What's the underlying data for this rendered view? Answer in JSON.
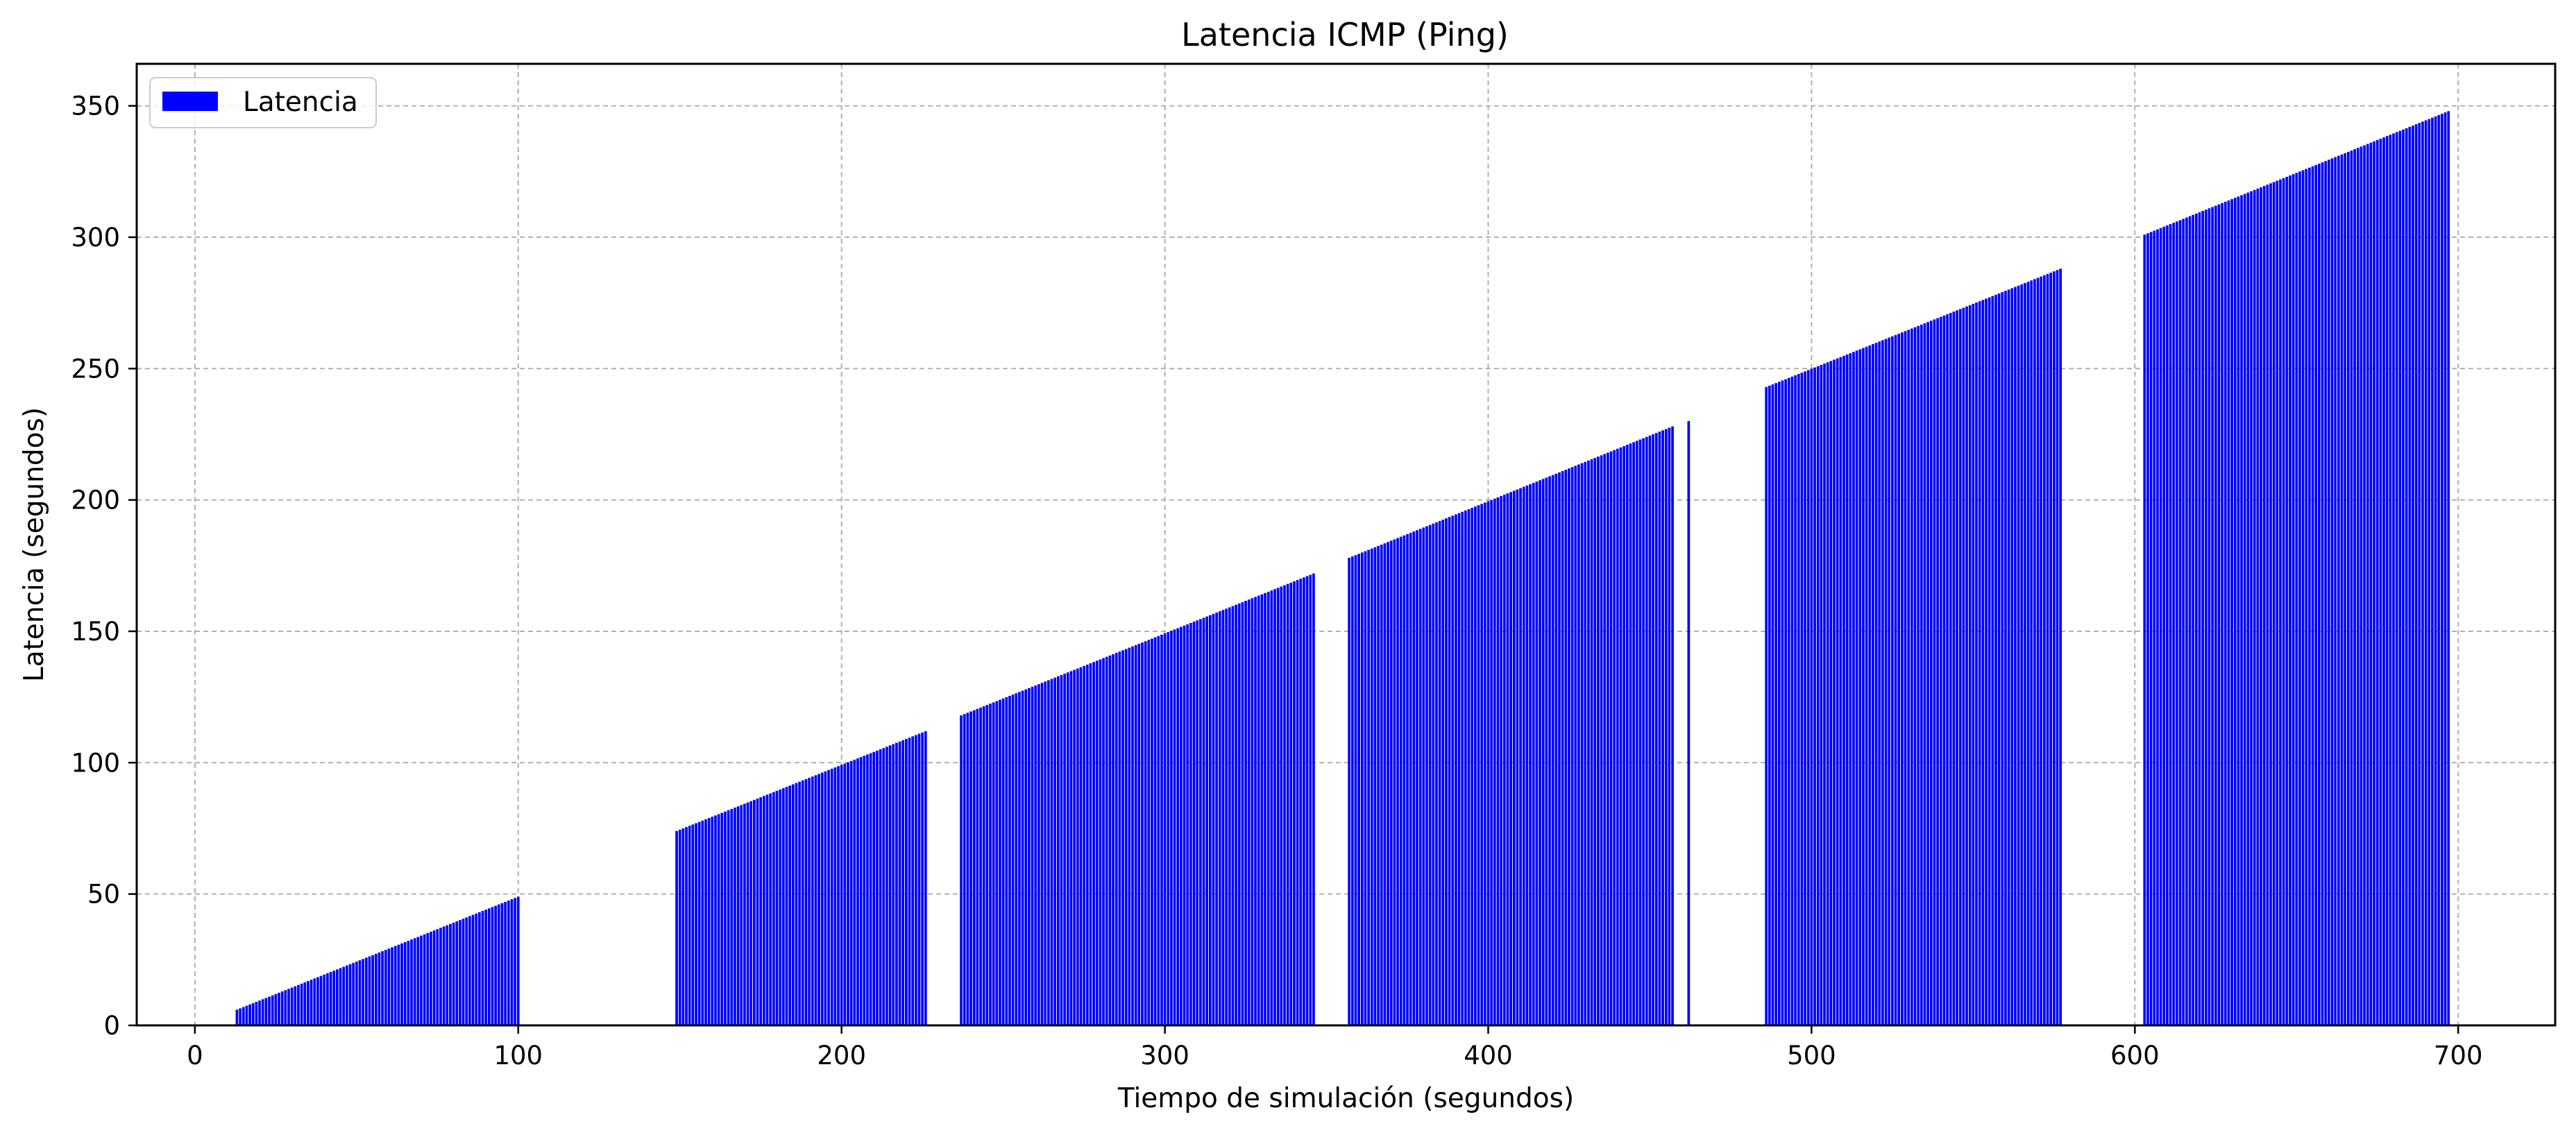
{
  "chart_data": {
    "type": "bar",
    "title": "Latencia ICMP (Ping)",
    "xlabel": "Tiempo de simulación (segundos)",
    "ylabel": "Latencia (segundos)",
    "xlim": [
      -18,
      730
    ],
    "ylim": [
      0,
      366
    ],
    "xticks": [
      0,
      100,
      200,
      300,
      400,
      500,
      600,
      700
    ],
    "yticks": [
      0,
      50,
      100,
      150,
      200,
      250,
      300,
      350
    ],
    "grid": true,
    "legend_position": "top-left",
    "bar_color": "#0000ff",
    "series": [
      {
        "name": "Latencia",
        "segments": [
          {
            "x_start": 13,
            "x_end": 100,
            "y_start": 6,
            "y_end": 49
          },
          {
            "x_start": 149,
            "x_end": 226,
            "y_start": 74,
            "y_end": 112
          },
          {
            "x_start": 237,
            "x_end": 346,
            "y_start": 118,
            "y_end": 172
          },
          {
            "x_start": 357,
            "x_end": 457,
            "y_start": 178,
            "y_end": 228
          },
          {
            "x_start": 462,
            "x_end": 462,
            "y_start": 230,
            "y_end": 230
          },
          {
            "x_start": 486,
            "x_end": 577,
            "y_start": 243,
            "y_end": 288
          },
          {
            "x_start": 603,
            "x_end": 697,
            "y_start": 301,
            "y_end": 348
          }
        ]
      }
    ]
  }
}
